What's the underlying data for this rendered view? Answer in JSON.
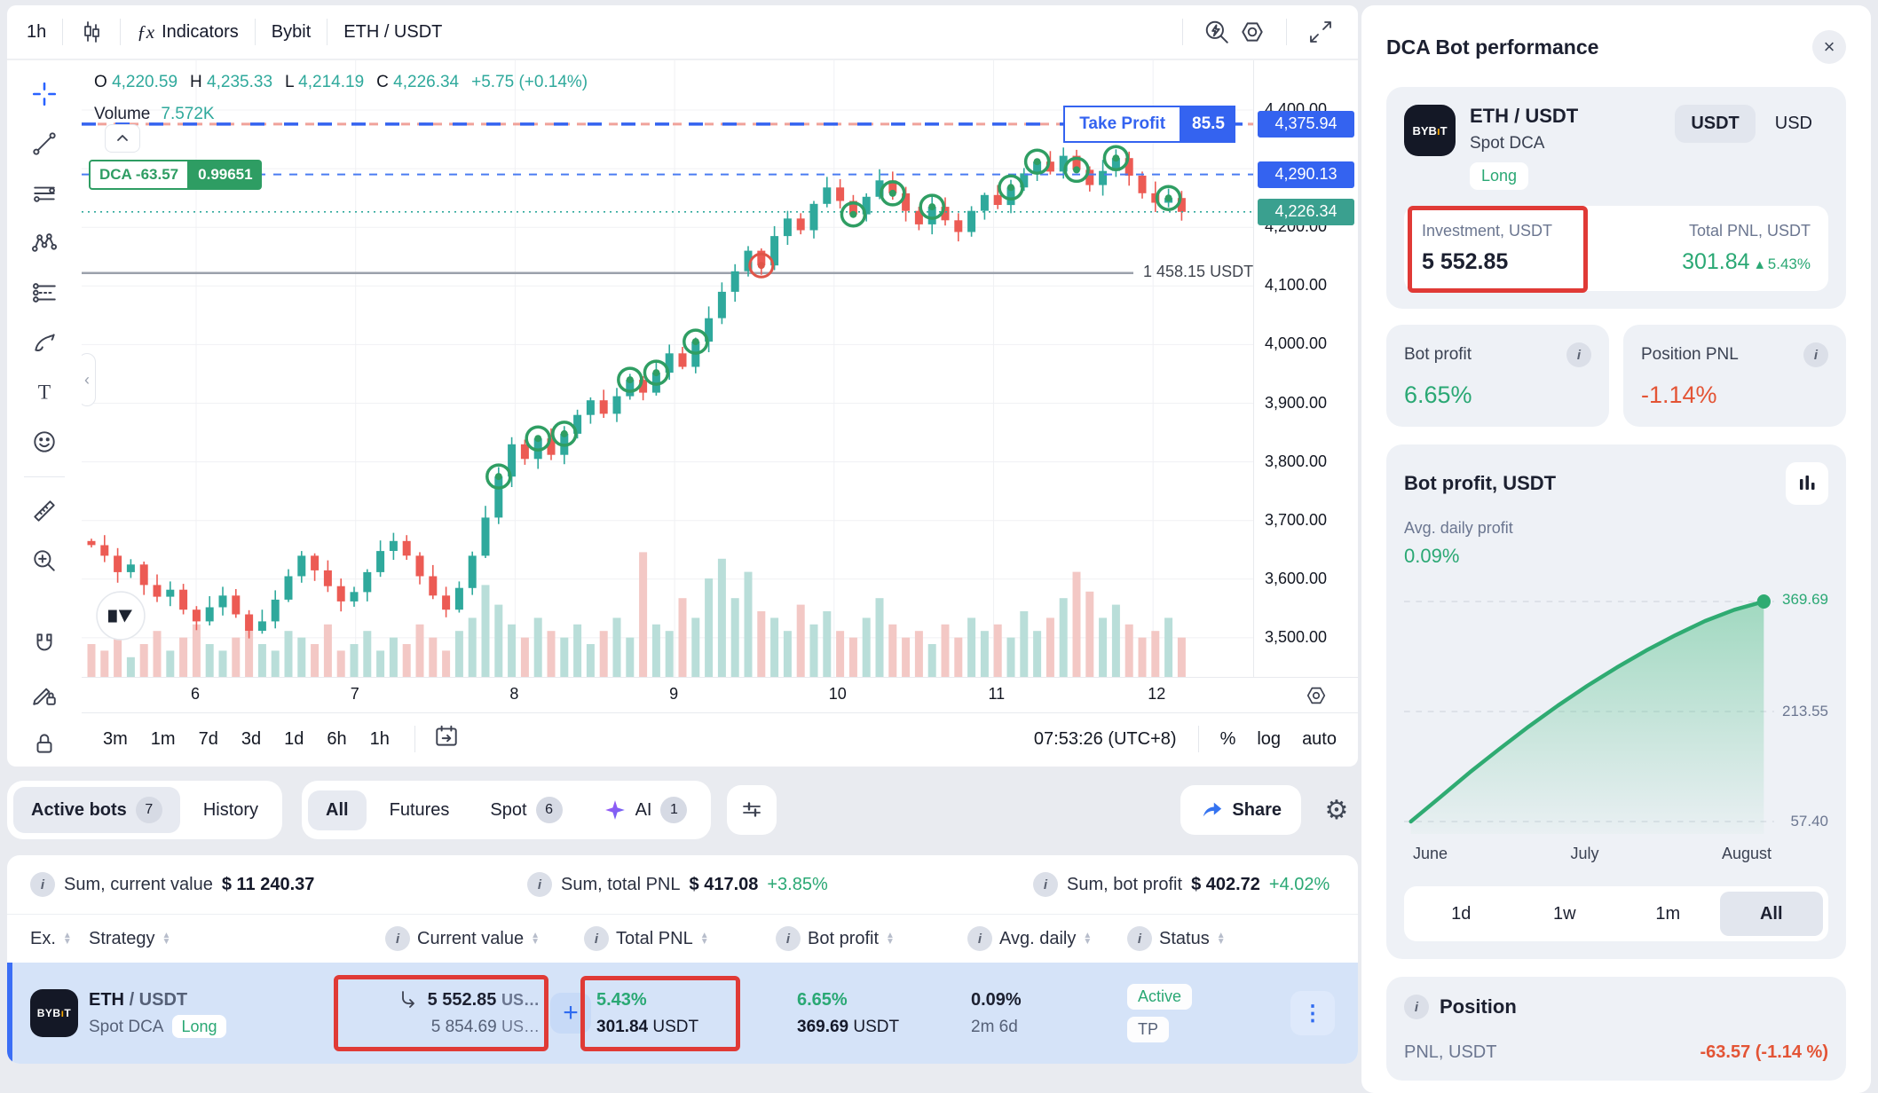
{
  "colors": {
    "accent_blue": "#3463f0",
    "green": "#2aa874",
    "teal": "#2fa99c",
    "candle_up": "#2fa99c",
    "candle_down": "#ec5b54",
    "orange_red": "#e35435",
    "annotation_red": "#e03a36",
    "badge_green": "#2e9d63"
  },
  "icons": {
    "close": "×",
    "gear": "⚙",
    "kebab": "⋮",
    "plus": "+",
    "up_triangle": "▴",
    "fx": "ƒx",
    "sort_up": "▲",
    "sort_down": "▼",
    "info": "i",
    "chevron_left": "‹"
  },
  "toolbar": {
    "timeframe": "1h",
    "indicators": "Indicators",
    "exchange": "Bybit",
    "pair": "ETH / USDT"
  },
  "chart": {
    "legend": {
      "o_label": "O",
      "o": "4,220.59",
      "h_label": "H",
      "h": "4,235.33",
      "l_label": "L",
      "l": "4,214.19",
      "c_label": "C",
      "c": "4,226.34",
      "change": "+5.75 (+0.14%)",
      "volume_label": "Volume",
      "volume_value": "7.572K"
    },
    "dca_badge": {
      "label": "DCA -63.57",
      "value": "0.99651"
    },
    "take_profit": {
      "label": "Take Profit",
      "badge": "85.5",
      "price_label": "4,375.94"
    },
    "dca_line_price_label": "4,290.13",
    "last_price_label": "4,226.34",
    "position_line_label": "1 458.15 USDT",
    "y_ticks": [
      "4,400.00",
      "4,300.00",
      "4,200.00",
      "4,100.00",
      "4,000.00",
      "3,900.00",
      "3,800.00",
      "3,700.00",
      "3,600.00",
      "3,500.00"
    ],
    "x_ticks": [
      "6",
      "7",
      "8",
      "9",
      "10",
      "11",
      "12"
    ],
    "timeframes": [
      "3m",
      "1m",
      "7d",
      "3d",
      "1d",
      "6h",
      "1h"
    ],
    "clock": "07:53:26 (UTC+8)",
    "axis_buttons": [
      "%",
      "log",
      "auto"
    ]
  },
  "chart_data": [
    {
      "type": "candlestick",
      "pair": "ETH / USDT",
      "timeframe": "1h",
      "x_tick_labels": [
        "6",
        "7",
        "8",
        "9",
        "10",
        "11",
        "12"
      ],
      "y_axis_range": [
        3440,
        4460
      ],
      "first_open": 3665,
      "closes": [
        3658,
        3640,
        3612,
        3625,
        3590,
        3570,
        3582,
        3548,
        3528,
        3552,
        3572,
        3540,
        3512,
        3528,
        3565,
        3605,
        3640,
        3615,
        3588,
        3562,
        3578,
        3612,
        3648,
        3665,
        3640,
        3605,
        3572,
        3548,
        3585,
        3640,
        3705,
        3775,
        3830,
        3805,
        3840,
        3812,
        3848,
        3880,
        3905,
        3882,
        3912,
        3940,
        3918,
        3952,
        3985,
        3962,
        4005,
        4045,
        4090,
        4125,
        4160,
        4135,
        4185,
        4215,
        4195,
        4240,
        4268,
        4245,
        4222,
        4252,
        4280,
        4258,
        4228,
        4205,
        4235,
        4212,
        4192,
        4228,
        4255,
        4238,
        4268,
        4292,
        4312,
        4295,
        4322,
        4298,
        4272,
        4296,
        4318,
        4288,
        4258,
        4242,
        4250,
        4226.34
      ],
      "volumes_k": [
        5,
        4,
        6,
        3,
        5,
        7,
        4,
        6,
        8,
        5,
        4,
        6,
        9,
        5,
        4,
        7,
        6,
        5,
        8,
        4,
        5,
        7,
        4,
        6,
        5,
        8,
        6,
        4,
        7,
        9,
        14,
        11,
        8,
        6,
        9,
        7,
        6,
        8,
        5,
        7,
        9,
        6,
        19,
        8,
        7,
        12,
        9,
        15,
        18,
        12,
        16,
        10,
        9,
        7,
        11,
        8,
        10,
        7,
        6,
        9,
        12,
        8,
        6,
        7,
        5,
        8,
        6,
        9,
        7,
        8,
        6,
        10,
        7,
        9,
        12,
        16,
        13,
        9,
        11,
        8,
        6,
        7,
        9,
        6
      ],
      "buy_marker_indices": [
        31,
        34,
        36,
        41,
        43,
        46,
        58,
        61,
        64,
        70,
        72,
        75,
        78,
        82
      ],
      "stop_marker_index": 51,
      "lines": {
        "take_profit": 4375.94,
        "dca_order": 4290.13,
        "last_price": 4226.34,
        "position_value_line": 4122,
        "position_value_label": "1 458.15 USDT"
      }
    },
    {
      "type": "line",
      "title": "Bot profit, USDT",
      "x_labels": [
        "June",
        "July",
        "August"
      ],
      "gridline_values": [
        369.69,
        213.55,
        57.4
      ],
      "gridline_labels": [
        "369.69",
        "213.55",
        "57.40"
      ],
      "points": [
        57.4,
        92,
        127,
        160,
        192,
        222,
        250,
        276,
        300,
        322,
        342,
        358,
        369.69
      ],
      "end_value": 369.69
    }
  ],
  "bots": {
    "tabs": {
      "active": "Active bots",
      "active_count": "7",
      "history": "History"
    },
    "filters": {
      "all": "All",
      "futures": "Futures",
      "spot": "Spot",
      "spot_count": "6",
      "ai": "AI",
      "ai_count": "1"
    },
    "share_label": "Share",
    "summary": [
      {
        "label": "Sum, current value",
        "value": "$ 11 240.37",
        "pct": ""
      },
      {
        "label": "Sum, total PNL",
        "value": "$ 417.08",
        "pct": "+3.85%"
      },
      {
        "label": "Sum, bot profit",
        "value": "$ 402.72",
        "pct": "+4.02%"
      }
    ],
    "table": {
      "headers": {
        "ex": "Ex.",
        "strategy": "Strategy",
        "current_value": "Current value",
        "total_pnl": "Total PNL",
        "bot_profit": "Bot profit",
        "avg_daily": "Avg. daily",
        "status": "Status"
      },
      "row": {
        "pair_base": "ETH",
        "pair_quote": "/ USDT",
        "strategy": "Spot DCA",
        "side": "Long",
        "current_value": "5 552.85",
        "current_value_unit": "US…",
        "secondary_value": "5 854.69",
        "secondary_value_unit": "US…",
        "total_pnl_pct": "5.43%",
        "total_pnl": "301.84",
        "total_pnl_unit": "USDT",
        "bot_profit_pct": "6.65%",
        "bot_profit": "369.69",
        "bot_profit_unit": "USDT",
        "avg_daily_pct": "0.09%",
        "duration": "2m 6d",
        "status": "Active",
        "status2": "TP"
      }
    }
  },
  "panel": {
    "title": "DCA Bot performance",
    "pair": "ETH / USDT",
    "strategy": "Spot DCA",
    "side": "Long",
    "currency_options": [
      "USDT",
      "USD"
    ],
    "investment": {
      "label": "Investment, USDT",
      "value": "5 552.85"
    },
    "total_pnl": {
      "label": "Total PNL, USDT",
      "value": "301.84",
      "change": "5.43%"
    },
    "bot_profit": {
      "label": "Bot profit",
      "value": "6.65%"
    },
    "position_pnl": {
      "label": "Position PNL",
      "value": "-1.14%"
    },
    "bot_profit_chart": {
      "title": "Bot profit, USDT",
      "avg_label": "Avg. daily profit",
      "avg_value": "0.09%"
    },
    "ranges": [
      "1d",
      "1w",
      "1m",
      "All"
    ],
    "position": {
      "title": "Position",
      "pnl_label": "PNL, USDT",
      "pnl_value": "-63.57  (-1.14 %)"
    }
  }
}
